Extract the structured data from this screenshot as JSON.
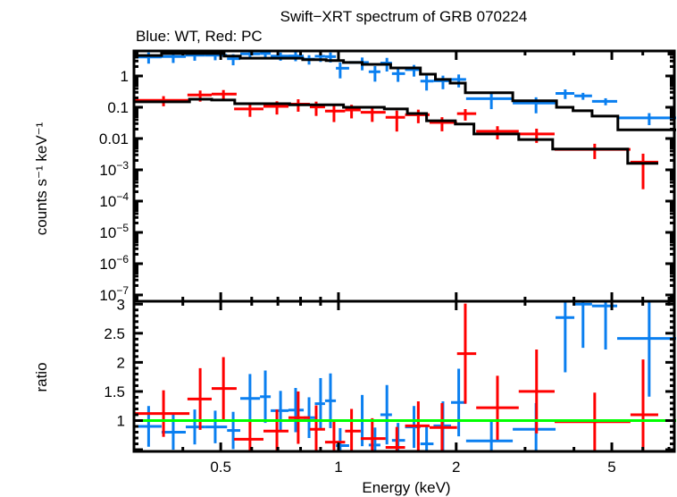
{
  "chart_data": [
    {
      "panel": "spectrum",
      "type": "scatter",
      "title": "Swift−XRT spectrum of GRB 070224",
      "subtitle": "Blue: WT, Red: PC",
      "xlabel": "Energy (keV)",
      "ylabel": "counts s⁻¹ keV⁻¹",
      "xscale": "log",
      "yscale": "log",
      "xlim": [
        0.3,
        7.3
      ],
      "ylim": [
        6.3e-08,
        6.3
      ],
      "x_ticks": [
        {
          "value": 0.5,
          "label": "0.5"
        },
        {
          "value": 1,
          "label": "1"
        },
        {
          "value": 2,
          "label": "2"
        },
        {
          "value": 5,
          "label": "5"
        }
      ],
      "y_ticks": [
        {
          "value": 1,
          "label": "1"
        },
        {
          "value": 0.1,
          "label": "0.1"
        },
        {
          "value": 0.01,
          "label": "0.01"
        },
        {
          "value": 0.001,
          "label": "10^-3"
        },
        {
          "value": 0.0001,
          "label": "10^-4"
        },
        {
          "value": 1e-05,
          "label": "10^-5"
        },
        {
          "value": 1e-06,
          "label": "10^-6"
        },
        {
          "value": 1e-07,
          "label": "10^-7"
        }
      ],
      "grid": false,
      "series": [
        {
          "mode": "WT",
          "color": "#0a7ff0",
          "model_steps": [
            [
              0.302,
              0.353,
              4.5
            ],
            [
              0.353,
              0.51,
              5.2
            ],
            [
              0.51,
              0.561,
              4.3
            ],
            [
              0.561,
              0.81,
              3.7
            ],
            [
              0.81,
              0.93,
              3.3
            ],
            [
              0.93,
              1.03,
              3.1
            ],
            [
              1.03,
              1.15,
              2.7
            ],
            [
              1.15,
              1.36,
              2.35
            ],
            [
              1.36,
              1.62,
              1.8
            ],
            [
              1.62,
              1.77,
              1.14
            ],
            [
              1.77,
              1.93,
              0.77
            ],
            [
              1.93,
              2.11,
              0.59
            ],
            [
              2.11,
              2.79,
              0.29
            ],
            [
              2.79,
              3.61,
              0.16
            ],
            [
              3.61,
              3.98,
              0.1
            ],
            [
              3.98,
              4.45,
              0.077
            ],
            [
              4.45,
              5.18,
              0.052
            ],
            [
              5.18,
              7.33,
              0.019
            ]
          ]
        },
        {
          "mode": "PC",
          "color": "#ff0000",
          "model_steps": [
            [
              0.302,
              0.416,
              0.149
            ],
            [
              0.416,
              0.474,
              0.18
            ],
            [
              0.474,
              0.543,
              0.17
            ],
            [
              0.543,
              0.75,
              0.13
            ],
            [
              0.75,
              1.03,
              0.12
            ],
            [
              1.03,
              1.31,
              0.1
            ],
            [
              1.31,
              1.5,
              0.088
            ],
            [
              1.5,
              1.68,
              0.063
            ],
            [
              1.68,
              1.99,
              0.037
            ],
            [
              1.99,
              2.22,
              0.029
            ],
            [
              2.22,
              2.89,
              0.014
            ],
            [
              2.89,
              3.53,
              0.0093
            ],
            [
              3.53,
              5.49,
              0.0046
            ],
            [
              5.49,
              6.57,
              0.0016
            ]
          ]
        }
      ]
    },
    {
      "panel": "ratio",
      "type": "scatter",
      "xlabel": "Energy (keV)",
      "ylabel": "ratio",
      "xscale": "log",
      "xlim": [
        0.3,
        7.3
      ],
      "ylim": [
        0.47,
        3.05
      ],
      "y_ticks": [
        {
          "value": 1,
          "label": "1"
        },
        {
          "value": 1.5,
          "label": "1.5"
        },
        {
          "value": 2,
          "label": "2"
        },
        {
          "value": 2.5,
          "label": "2.5"
        },
        {
          "value": 3,
          "label": "3"
        }
      ],
      "reference_line": {
        "value": 1,
        "color": "#00ff00"
      },
      "series": [
        {
          "mode": "WT",
          "color": "#0a7ff0",
          "points": [
            {
              "e": 0.327,
              "elo": 0.302,
              "ehi": 0.353,
              "ratio": 0.9,
              "err": 0.35
            },
            {
              "e": 0.378,
              "elo": 0.353,
              "ehi": 0.407,
              "ratio": 0.8,
              "err": 0.3
            },
            {
              "e": 0.429,
              "elo": 0.407,
              "ehi": 0.455,
              "ratio": 0.89,
              "err": 0.3
            },
            {
              "e": 0.484,
              "elo": 0.455,
              "ehi": 0.519,
              "ratio": 0.89,
              "err": 0.28
            },
            {
              "e": 0.538,
              "elo": 0.519,
              "ehi": 0.561,
              "ratio": 0.83,
              "err": 0.32
            },
            {
              "e": 0.594,
              "elo": 0.561,
              "ehi": 0.63,
              "ratio": 1.38,
              "err": 0.42
            },
            {
              "e": 0.65,
              "elo": 0.63,
              "ehi": 0.671,
              "ratio": 1.41,
              "err": 0.45
            },
            {
              "e": 0.711,
              "elo": 0.671,
              "ehi": 0.745,
              "ratio": 1.17,
              "err": 0.34
            },
            {
              "e": 0.777,
              "elo": 0.745,
              "ehi": 0.815,
              "ratio": 1.18,
              "err": 0.38
            },
            {
              "e": 0.841,
              "elo": 0.815,
              "ehi": 0.87,
              "ratio": 1.05,
              "err": 0.35
            },
            {
              "e": 0.9,
              "elo": 0.87,
              "ehi": 0.924,
              "ratio": 1.29,
              "err": 0.44
            },
            {
              "e": 0.954,
              "elo": 0.924,
              "ehi": 0.985,
              "ratio": 1.34,
              "err": 0.47
            },
            {
              "e": 1.01,
              "elo": 0.985,
              "ehi": 1.065,
              "ratio": 0.57,
              "err": 0.3
            },
            {
              "e": 1.15,
              "elo": 1.065,
              "ehi": 1.195,
              "ratio": 1.0,
              "err": 0.44
            },
            {
              "e": 1.24,
              "elo": 1.195,
              "ehi": 1.28,
              "ratio": 0.58,
              "err": 0.3
            },
            {
              "e": 1.33,
              "elo": 1.28,
              "ehi": 1.37,
              "ratio": 1.1,
              "err": 0.51
            },
            {
              "e": 1.42,
              "elo": 1.37,
              "ehi": 1.48,
              "ratio": 0.66,
              "err": 0.3
            },
            {
              "e": 1.56,
              "elo": 1.48,
              "ehi": 1.62,
              "ratio": 0.89,
              "err": 0.36
            },
            {
              "e": 1.68,
              "elo": 1.62,
              "ehi": 1.75,
              "ratio": 0.6,
              "err": 0.3
            },
            {
              "e": 1.85,
              "elo": 1.75,
              "ehi": 1.94,
              "ratio": 0.91,
              "err": 0.42
            },
            {
              "e": 2.03,
              "elo": 1.94,
              "ehi": 2.12,
              "ratio": 1.31,
              "err": 0.58
            },
            {
              "e": 2.46,
              "elo": 2.12,
              "ehi": 2.79,
              "ratio": 0.65,
              "err": 0.35
            },
            {
              "e": 3.2,
              "elo": 2.79,
              "ehi": 3.59,
              "ratio": 0.85,
              "err": 0.45
            },
            {
              "e": 3.8,
              "elo": 3.59,
              "ehi": 4.01,
              "ratio": 2.77,
              "err": 0.94
            },
            {
              "e": 4.22,
              "elo": 4.01,
              "ehi": 4.45,
              "ratio": 3.0,
              "err": 0.75
            },
            {
              "e": 4.82,
              "elo": 4.45,
              "ehi": 5.16,
              "ratio": 2.97,
              "err": 0.75
            },
            {
              "e": 6.23,
              "elo": 5.16,
              "ehi": 7.33,
              "ratio": 2.41,
              "err": 1.0
            }
          ]
        },
        {
          "mode": "PC",
          "color": "#ff0000",
          "points": [
            {
              "e": 0.357,
              "elo": 0.302,
              "ehi": 0.416,
              "ratio": 1.12,
              "err": 0.4
            },
            {
              "e": 0.443,
              "elo": 0.411,
              "ehi": 0.474,
              "ratio": 1.37,
              "err": 0.53
            },
            {
              "e": 0.508,
              "elo": 0.474,
              "ehi": 0.549,
              "ratio": 1.55,
              "err": 0.54
            },
            {
              "e": 0.594,
              "elo": 0.541,
              "ehi": 0.643,
              "ratio": 0.68,
              "err": 0.3
            },
            {
              "e": 0.696,
              "elo": 0.643,
              "ehi": 0.745,
              "ratio": 0.82,
              "err": 0.37
            },
            {
              "e": 0.789,
              "elo": 0.745,
              "ehi": 0.845,
              "ratio": 1.05,
              "err": 0.45
            },
            {
              "e": 0.877,
              "elo": 0.845,
              "ehi": 0.924,
              "ratio": 0.85,
              "err": 0.41
            },
            {
              "e": 0.974,
              "elo": 0.924,
              "ehi": 1.04,
              "ratio": 0.63,
              "err": 0.35
            },
            {
              "e": 1.08,
              "elo": 1.04,
              "ehi": 1.14,
              "ratio": 0.82,
              "err": 0.38
            },
            {
              "e": 1.22,
              "elo": 1.14,
              "ehi": 1.32,
              "ratio": 0.69,
              "err": 0.35
            },
            {
              "e": 1.41,
              "elo": 1.32,
              "ehi": 1.48,
              "ratio": 0.54,
              "err": 0.35
            },
            {
              "e": 1.6,
              "elo": 1.48,
              "ehi": 1.71,
              "ratio": 0.91,
              "err": 0.42
            },
            {
              "e": 1.84,
              "elo": 1.71,
              "ehi": 2.01,
              "ratio": 0.88,
              "err": 0.42
            },
            {
              "e": 2.11,
              "elo": 2.01,
              "ehi": 2.25,
              "ratio": 2.15,
              "err": 0.86
            },
            {
              "e": 2.55,
              "elo": 2.25,
              "ehi": 2.89,
              "ratio": 1.22,
              "err": 0.55
            },
            {
              "e": 3.21,
              "elo": 2.89,
              "ehi": 3.57,
              "ratio": 1.5,
              "err": 0.72
            },
            {
              "e": 4.52,
              "elo": 3.57,
              "ehi": 5.58,
              "ratio": 0.98,
              "err": 0.5
            },
            {
              "e": 6.01,
              "elo": 5.58,
              "ehi": 6.57,
              "ratio": 1.1,
              "err": 0.95
            }
          ]
        }
      ]
    }
  ]
}
